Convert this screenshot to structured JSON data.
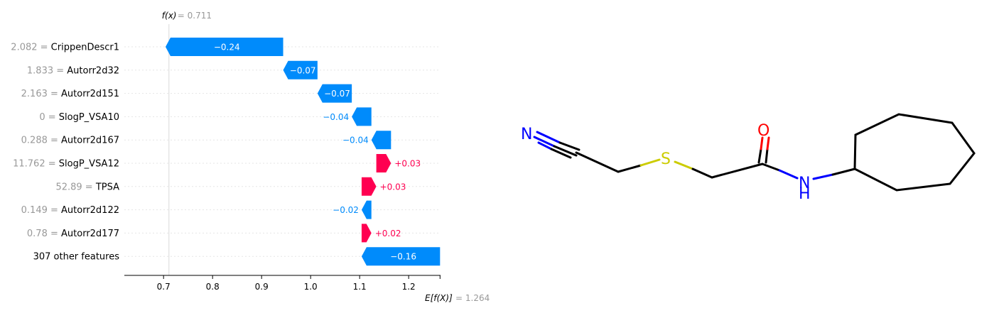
{
  "colors": {
    "negative": "#008bfb",
    "positive": "#ff0051",
    "muted": "#999999",
    "grid": "#e5e5e5",
    "bond": "#000000",
    "nitrogen": "#0000ff",
    "oxygen": "#ff0000",
    "sulfur": "#cccc00"
  },
  "chart_data": {
    "type": "waterfall",
    "fx_label": "f(x)",
    "fx_value": "0.711",
    "ex_label": "E[f(X)]",
    "ex_value": "1.264",
    "base_value": 1.264,
    "final_value": 0.711,
    "xlim": [
      0.62,
      1.265
    ],
    "xticks": [
      0.7,
      0.8,
      0.9,
      1.0,
      1.1,
      1.2
    ],
    "xtick_labels": [
      "0.7",
      "0.8",
      "0.9",
      "1.0",
      "1.1",
      "1.2"
    ],
    "features": [
      {
        "value": "2.082",
        "name": "CrippenDescr1",
        "contribution": -0.24,
        "label": "−0.24"
      },
      {
        "value": "1.833",
        "name": "Autorr2d32",
        "contribution": -0.07,
        "label": "−0.07"
      },
      {
        "value": "2.163",
        "name": "Autorr2d151",
        "contribution": -0.07,
        "label": "−0.07"
      },
      {
        "value": "0",
        "name": "SlogP_VSA10",
        "contribution": -0.04,
        "label": "−0.04"
      },
      {
        "value": "0.288",
        "name": "Autorr2d167",
        "contribution": -0.04,
        "label": "−0.04"
      },
      {
        "value": "11.762",
        "name": "SlogP_VSA12",
        "contribution": 0.03,
        "label": "+0.03"
      },
      {
        "value": "52.89",
        "name": "TPSA",
        "contribution": 0.03,
        "label": "+0.03"
      },
      {
        "value": "0.149",
        "name": "Autorr2d122",
        "contribution": -0.02,
        "label": "−0.02"
      },
      {
        "value": "0.78",
        "name": "Autorr2d177",
        "contribution": 0.02,
        "label": "+0.02"
      },
      {
        "value": "",
        "name": "307 other features",
        "contribution": -0.16,
        "label": "−0.16"
      }
    ]
  },
  "molecule": {
    "atoms": {
      "n_nitrile": "N",
      "sulfur": "S",
      "oxygen": "O",
      "n_amide": "N",
      "h_amide": "H"
    }
  }
}
